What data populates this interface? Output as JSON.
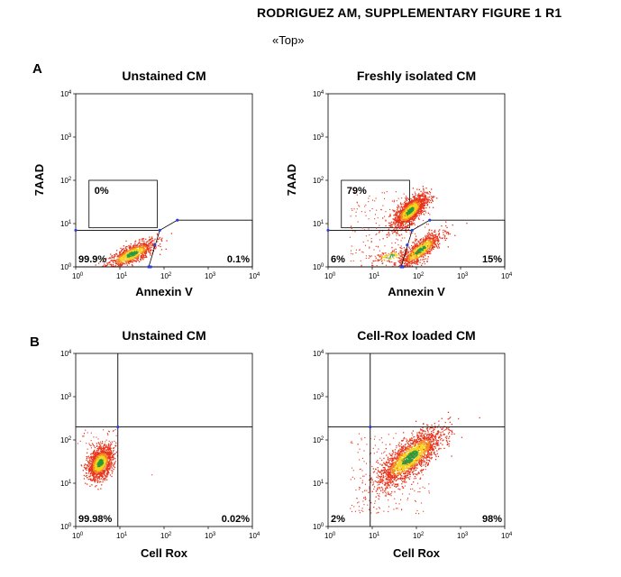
{
  "header": {
    "title": "RODRIGUEZ AM, SUPPLEMENTARY FIGURE 1 R1",
    "subtitle": "«Top»"
  },
  "panels": {
    "a": {
      "letter": "A"
    },
    "b": {
      "letter": "B"
    }
  },
  "tick_labels": {
    "base": "10",
    "exps": [
      "0",
      "1",
      "2",
      "3",
      "4"
    ]
  },
  "colors": {
    "density_low": "#e8341c",
    "density_mid": "#f6d21a",
    "density_high": "#2a9a3c",
    "gate_point": "#2a3fd6"
  },
  "chart_data": [
    {
      "type": "scatter",
      "title": "Unstained CM",
      "xlabel": "Annexin V",
      "ylabel": "7AAD",
      "xscale": "log",
      "yscale": "log",
      "xlim": [
        1,
        10000
      ],
      "ylim": [
        1,
        10000
      ],
      "gates": [
        {
          "label": "0%",
          "value": 0,
          "region": "7AAD+ AnnexinV-"
        },
        {
          "label": "99.9%",
          "value": 99.9,
          "region": "7AAD- AnnexinV-"
        },
        {
          "label": "0.1%",
          "value": 0.1,
          "region": "7AAD- AnnexinV+"
        }
      ]
    },
    {
      "type": "scatter",
      "title": "Freshly isolated CM",
      "xlabel": "Annexin V",
      "ylabel": "7AAD",
      "xscale": "log",
      "yscale": "log",
      "xlim": [
        1,
        10000
      ],
      "ylim": [
        1,
        10000
      ],
      "gates": [
        {
          "label": "79%",
          "value": 79,
          "region": "7AAD+ AnnexinV-"
        },
        {
          "label": "6%",
          "value": 6,
          "region": "7AAD- AnnexinV-"
        },
        {
          "label": "15%",
          "value": 15,
          "region": "7AAD- AnnexinV+"
        }
      ]
    },
    {
      "type": "scatter",
      "title": "Unstained CM",
      "xlabel": "Cell Rox",
      "ylabel": "",
      "xscale": "log",
      "yscale": "log",
      "xlim": [
        1,
        10000
      ],
      "ylim": [
        1,
        10000
      ],
      "quadrant_threshold": {
        "x": 9,
        "y": 200
      },
      "quadrants": [
        {
          "label": "99.98%",
          "value": 99.98,
          "region": "lower-left"
        },
        {
          "label": "0.02%",
          "value": 0.02,
          "region": "lower-right"
        }
      ]
    },
    {
      "type": "scatter",
      "title": "Cell-Rox loaded CM",
      "xlabel": "Cell  Rox",
      "ylabel": "",
      "xscale": "log",
      "yscale": "log",
      "xlim": [
        1,
        10000
      ],
      "ylim": [
        1,
        10000
      ],
      "quadrant_threshold": {
        "x": 9,
        "y": 200
      },
      "quadrants": [
        {
          "label": "2%",
          "value": 2,
          "region": "lower-left"
        },
        {
          "label": "98%",
          "value": 98,
          "region": "lower-right"
        }
      ]
    }
  ]
}
